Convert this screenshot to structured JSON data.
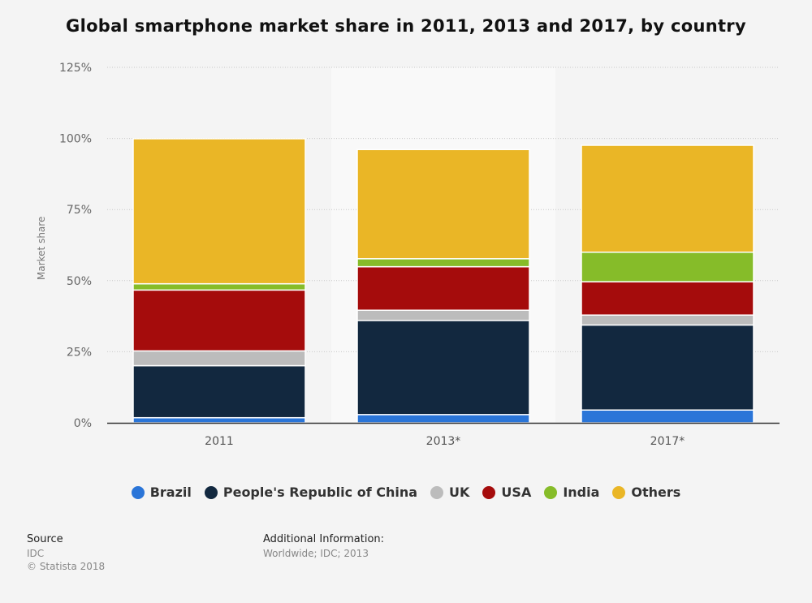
{
  "chart_data": {
    "type": "bar",
    "stacked": true,
    "title": "Global smartphone market share in 2011, 2013 and 2017, by country",
    "ylabel": "Market share",
    "xlabel": "",
    "categories": [
      "2011",
      "2013*",
      "2017*"
    ],
    "ylim": [
      0,
      125
    ],
    "yticks": [
      "0%",
      "25%",
      "50%",
      "75%",
      "100%",
      "125%"
    ],
    "grid": true,
    "legend_position": "bottom",
    "series": [
      {
        "name": "Brazil",
        "color": "#2a75d8",
        "values": [
          1.8,
          2.9,
          4.5
        ]
      },
      {
        "name": "People's Republic of China",
        "color": "#12283f",
        "values": [
          18.3,
          33.1,
          29.9
        ]
      },
      {
        "name": "UK",
        "color": "#bcbcbc",
        "values": [
          5.2,
          3.6,
          3.5
        ]
      },
      {
        "name": "USA",
        "color": "#a50c0c",
        "values": [
          21.4,
          15.3,
          11.7
        ]
      },
      {
        "name": "India",
        "color": "#86bc29",
        "values": [
          2.2,
          2.8,
          10.4
        ]
      },
      {
        "name": "Others",
        "color": "#eab626",
        "values": [
          51.0,
          38.4,
          37.6
        ]
      }
    ]
  },
  "footer": {
    "source_label": "Source",
    "source_value": "IDC",
    "copyright": "© Statista 2018",
    "additional_label": "Additional Information:",
    "additional_value": "Worldwide; IDC; 2013"
  }
}
